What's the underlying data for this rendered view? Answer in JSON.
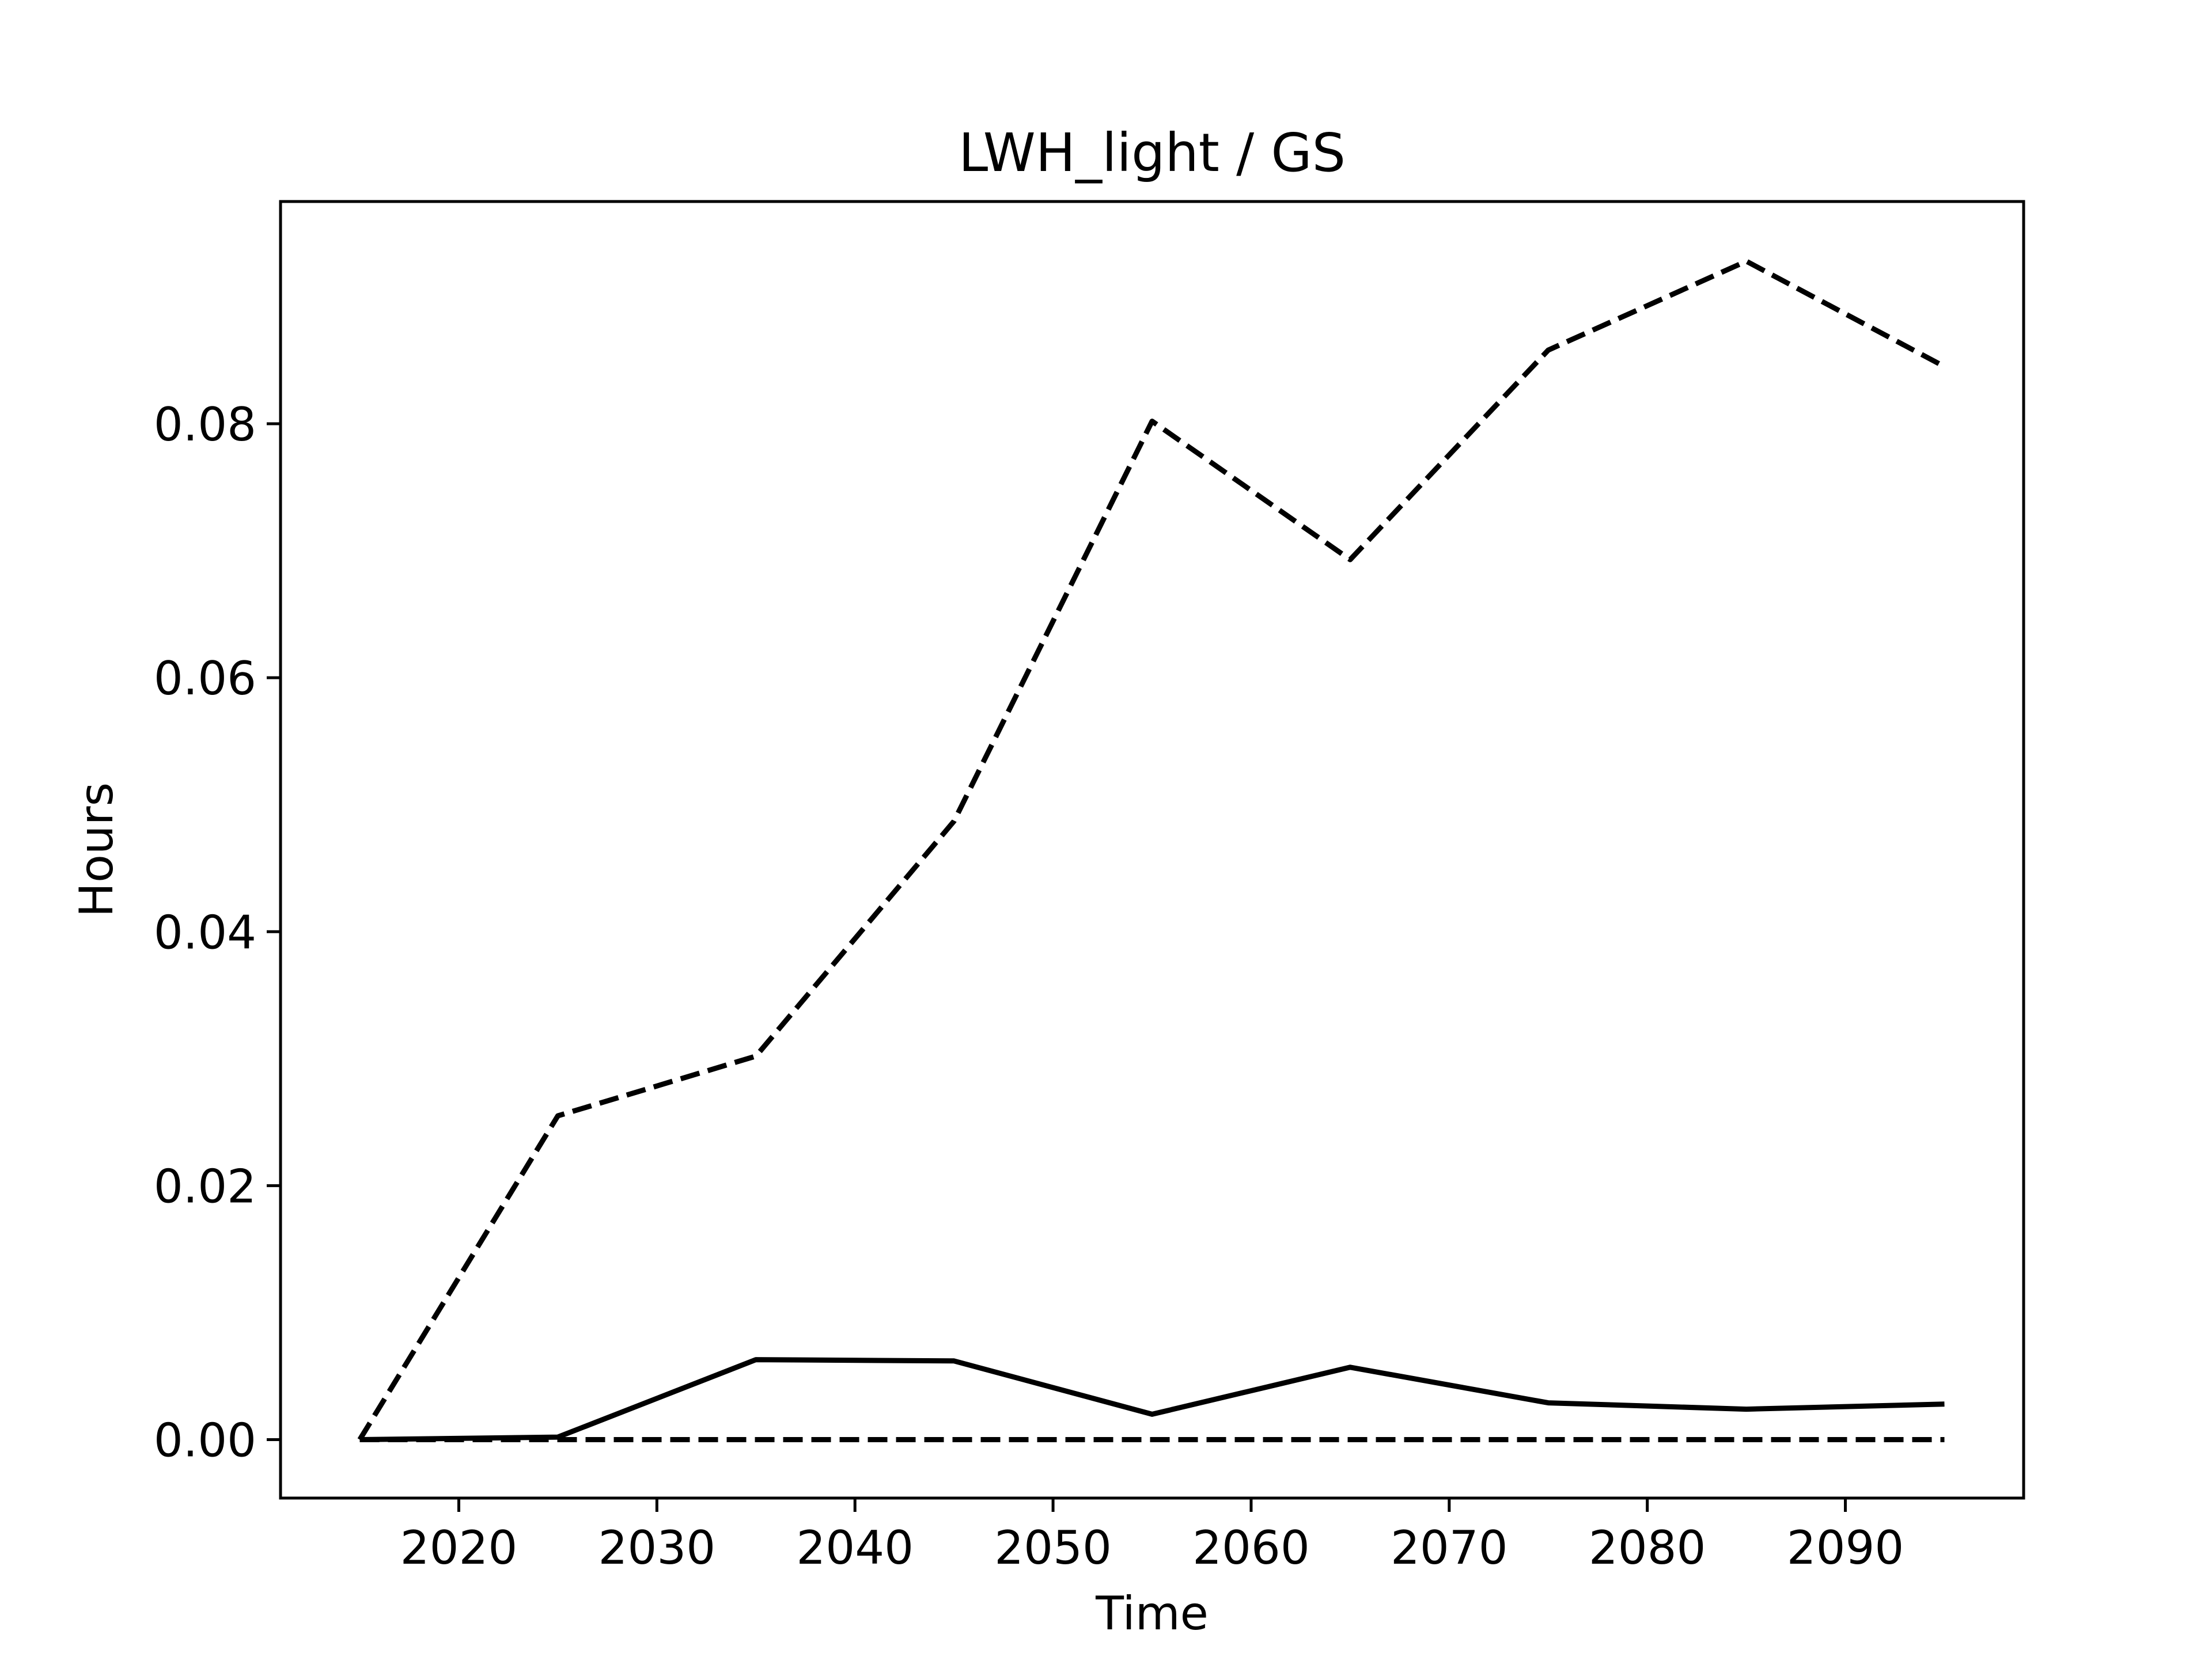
{
  "colors": {
    "background": "#ffffff",
    "line": "#000000"
  },
  "chart_data": {
    "type": "line",
    "title": "LWH_light / GS",
    "xlabel": "Time",
    "ylabel": "Hours",
    "xlim": [
      2011,
      2099
    ],
    "ylim": [
      -0.0046,
      0.0975
    ],
    "xticks": [
      2020,
      2030,
      2040,
      2050,
      2060,
      2070,
      2080,
      2090
    ],
    "xtick_labels": [
      "2020",
      "2030",
      "2040",
      "2050",
      "2060",
      "2070",
      "2080",
      "2090"
    ],
    "yticks": [
      0.0,
      0.02,
      0.04,
      0.06,
      0.08
    ],
    "ytick_labels": [
      "0.00",
      "0.02",
      "0.04",
      "0.06",
      "0.08"
    ],
    "grid": false,
    "x": [
      2015,
      2025,
      2035,
      2045,
      2055,
      2065,
      2075,
      2085,
      2095
    ],
    "series": [
      {
        "style": "dashed",
        "color": "#000000",
        "values": [
          0.0,
          0.0255,
          0.0302,
          0.0487,
          0.0802,
          0.0693,
          0.0858,
          0.0928,
          0.0845
        ]
      },
      {
        "style": "solid",
        "color": "#000000",
        "values": [
          0.0,
          0.0002,
          0.0063,
          0.0062,
          0.002,
          0.0057,
          0.0029,
          0.0024,
          0.0028
        ]
      },
      {
        "style": "dashed",
        "color": "#000000",
        "values": [
          0.0,
          0.0,
          0.0,
          0.0,
          0.0,
          0.0,
          0.0,
          0.0,
          0.0
        ]
      }
    ]
  }
}
